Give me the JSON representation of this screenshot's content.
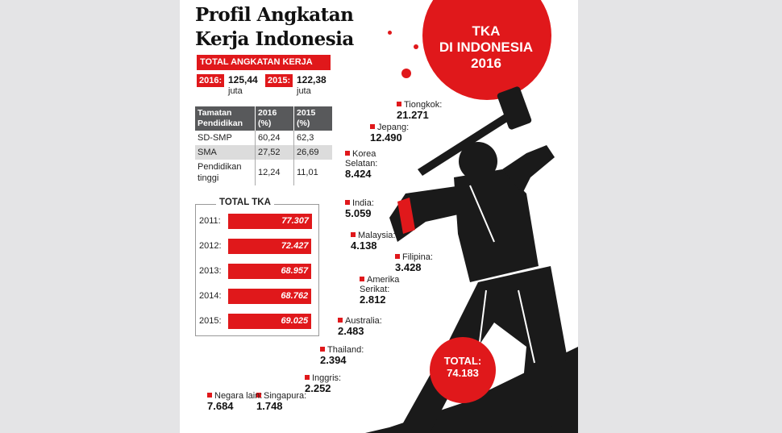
{
  "title_line1": "Profil Angkatan",
  "title_line2": "Kerja Indonesia",
  "total_angkatan": {
    "label": "TOTAL ANGKATAN KERJA",
    "y2016_label": "2016:",
    "y2016_value": "125,44",
    "y2015_label": "2015:",
    "y2015_value": "122,38",
    "unit": "juta"
  },
  "education_table": {
    "headers": [
      "Tamatan Pendidikan",
      "2016 (%)",
      "2015 (%)"
    ],
    "rows": [
      [
        "SD-SMP",
        "60,24",
        "62,3"
      ],
      [
        "SMA",
        "27,52",
        "26,69"
      ],
      [
        "Pendidikan tinggi",
        "12,24",
        "11,01"
      ]
    ]
  },
  "tka_box_title": "TOTAL TKA",
  "sun_text": [
    "TKA",
    "DI INDONESIA",
    "2016"
  ],
  "total_circle": {
    "label": "TOTAL:",
    "value": "74.183"
  },
  "chart_data": [
    {
      "type": "bar",
      "title": "TOTAL TKA",
      "categories": [
        "2011:",
        "2012:",
        "2013:",
        "2014:",
        "2015:"
      ],
      "values": [
        77307,
        72427,
        68957,
        68762,
        69025
      ],
      "value_labels": [
        "77.307",
        "72.427",
        "68.957",
        "68.762",
        "69.025"
      ],
      "orientation": "horizontal",
      "color": "#e0181b"
    },
    {
      "type": "table",
      "title": "TKA DI INDONESIA 2016",
      "countries": [
        {
          "name": "Tiongkok:",
          "value": "21.271"
        },
        {
          "name": "Jepang:",
          "value": "12.490"
        },
        {
          "name": "Korea Selatan:",
          "value": "8.424"
        },
        {
          "name": "India:",
          "value": "5.059"
        },
        {
          "name": "Malaysia:",
          "value": "4.138"
        },
        {
          "name": "Filipina:",
          "value": "3.428"
        },
        {
          "name": "Amerika Serikat:",
          "value": "2.812"
        },
        {
          "name": "Australia:",
          "value": "2.483"
        },
        {
          "name": "Thailand:",
          "value": "2.394"
        },
        {
          "name": "Inggris:",
          "value": "2.252"
        },
        {
          "name": "Singapura:",
          "value": "1.748"
        },
        {
          "name": "Negara lain:",
          "value": "7.684"
        }
      ]
    }
  ],
  "colors": {
    "accent": "#e0181b",
    "dark": "#111111",
    "header_gray": "#58595b"
  },
  "icons": [
    "hammer-worker-illustration"
  ]
}
